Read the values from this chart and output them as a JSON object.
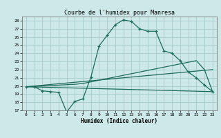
{
  "title": "Courbe de l'humidex pour Manresa",
  "xlabel": "Humidex (Indice chaleur)",
  "bg_color": "#cce8e8",
  "grid_color": "#aacece",
  "line_color": "#1a6b5a",
  "xlim": [
    -0.5,
    23.5
  ],
  "ylim": [
    17,
    28.5
  ],
  "xticks": [
    0,
    1,
    2,
    3,
    4,
    5,
    6,
    7,
    8,
    9,
    10,
    11,
    12,
    13,
    14,
    15,
    16,
    17,
    18,
    19,
    20,
    21,
    22,
    23
  ],
  "yticks": [
    17,
    18,
    19,
    20,
    21,
    22,
    23,
    24,
    25,
    26,
    27,
    28
  ],
  "series1_x": [
    0,
    1,
    2,
    3,
    4,
    5,
    6,
    7,
    8,
    9,
    10,
    11,
    12,
    13,
    14,
    15,
    16,
    17,
    18,
    19,
    20,
    21,
    22,
    23
  ],
  "series1_y": [
    19.9,
    19.9,
    19.4,
    19.3,
    19.2,
    16.8,
    18.1,
    18.4,
    21.1,
    24.9,
    26.2,
    27.5,
    28.1,
    27.9,
    27.0,
    26.7,
    26.7,
    24.3,
    24.0,
    23.1,
    21.7,
    21.0,
    20.1,
    19.3
  ],
  "series2_x": [
    0,
    23
  ],
  "series2_y": [
    19.9,
    19.3
  ],
  "series3_x": [
    0,
    1,
    2,
    3,
    4,
    5,
    6,
    7,
    8,
    9,
    10,
    11,
    12,
    13,
    14,
    15,
    16,
    17,
    18,
    19,
    20,
    21,
    22,
    23
  ],
  "series3_y": [
    19.9,
    19.95,
    20.0,
    20.05,
    20.1,
    20.15,
    20.2,
    20.3,
    20.5,
    20.7,
    20.9,
    21.1,
    21.3,
    21.5,
    21.7,
    21.9,
    22.1,
    22.3,
    22.5,
    22.7,
    22.9,
    23.1,
    22.0,
    19.3
  ],
  "series4_x": [
    0,
    23
  ],
  "series4_y": [
    19.9,
    22.0
  ]
}
